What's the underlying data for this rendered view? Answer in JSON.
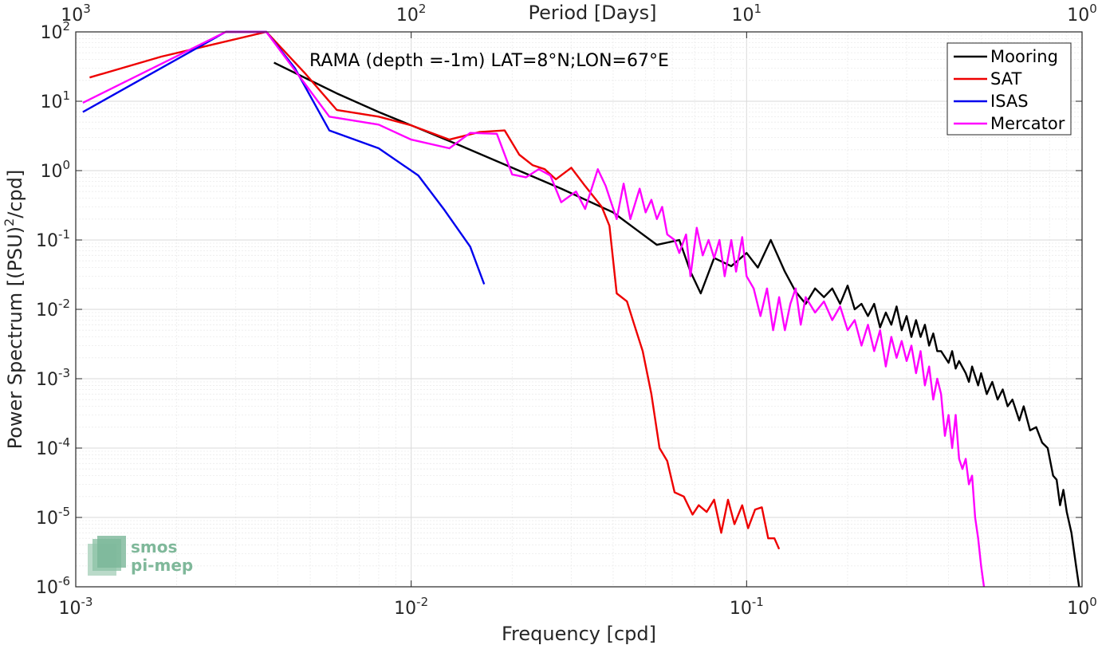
{
  "chart_data": {
    "type": "line",
    "annotation": "RAMA (depth =-1m) LAT=8°N;LON=67°E",
    "xlabel": "Frequency [cpd]",
    "ylabel_main": "Power Spectrum [(PSU)",
    "ylabel_sup": "2",
    "ylabel_tail": "/cpd]",
    "x2label": "Period [Days]",
    "xscale": "log",
    "yscale": "log",
    "xlim": [
      0.001,
      1
    ],
    "ylim": [
      1e-06,
      100
    ],
    "grid": true,
    "legend_position": "top-right",
    "x_ticks": [
      {
        "base": "10",
        "exp": "-3"
      },
      {
        "base": "10",
        "exp": "-2"
      },
      {
        "base": "10",
        "exp": "-1"
      },
      {
        "base": "10",
        "exp": "0"
      }
    ],
    "x2_ticks": [
      {
        "base": "10",
        "exp": "3"
      },
      {
        "base": "10",
        "exp": "2"
      },
      {
        "base": "10",
        "exp": "1"
      },
      {
        "base": "10",
        "exp": "0"
      }
    ],
    "y_ticks": [
      {
        "base": "10",
        "exp": "-6"
      },
      {
        "base": "10",
        "exp": "-5"
      },
      {
        "base": "10",
        "exp": "-4"
      },
      {
        "base": "10",
        "exp": "-3"
      },
      {
        "base": "10",
        "exp": "-2"
      },
      {
        "base": "10",
        "exp": "-1"
      },
      {
        "base": "10",
        "exp": "0"
      },
      {
        "base": "10",
        "exp": "1"
      },
      {
        "base": "10",
        "exp": "2"
      }
    ],
    "series": [
      {
        "name": "Mooring",
        "color": "#000000",
        "points": [
          [
            0.0039,
            36
          ],
          [
            0.0049,
            21
          ],
          [
            0.006,
            13
          ],
          [
            0.008,
            7
          ],
          [
            0.01,
            4.5
          ],
          [
            0.014,
            2.3
          ],
          [
            0.02,
            1.1
          ],
          [
            0.028,
            0.55
          ],
          [
            0.04,
            0.25
          ],
          [
            0.047,
            0.14
          ],
          [
            0.054,
            0.085
          ],
          [
            0.063,
            0.1
          ],
          [
            0.068,
            0.035
          ],
          [
            0.073,
            0.017
          ],
          [
            0.08,
            0.055
          ],
          [
            0.09,
            0.042
          ],
          [
            0.1,
            0.065
          ],
          [
            0.108,
            0.04
          ],
          [
            0.118,
            0.1
          ],
          [
            0.13,
            0.035
          ],
          [
            0.14,
            0.018
          ],
          [
            0.15,
            0.012
          ],
          [
            0.16,
            0.02
          ],
          [
            0.17,
            0.015
          ],
          [
            0.18,
            0.02
          ],
          [
            0.19,
            0.012
          ],
          [
            0.2,
            0.022
          ],
          [
            0.21,
            0.01
          ],
          [
            0.22,
            0.012
          ],
          [
            0.23,
            0.008
          ],
          [
            0.24,
            0.012
          ],
          [
            0.25,
            0.0055
          ],
          [
            0.26,
            0.009
          ],
          [
            0.27,
            0.006
          ],
          [
            0.28,
            0.011
          ],
          [
            0.29,
            0.005
          ],
          [
            0.3,
            0.008
          ],
          [
            0.31,
            0.004
          ],
          [
            0.32,
            0.007
          ],
          [
            0.33,
            0.004
          ],
          [
            0.34,
            0.006
          ],
          [
            0.35,
            0.003
          ],
          [
            0.36,
            0.0045
          ],
          [
            0.37,
            0.0025
          ],
          [
            0.38,
            0.0025
          ],
          [
            0.4,
            0.0017
          ],
          [
            0.41,
            0.0025
          ],
          [
            0.42,
            0.0014
          ],
          [
            0.43,
            0.0018
          ],
          [
            0.45,
            0.0012
          ],
          [
            0.46,
            0.0009
          ],
          [
            0.47,
            0.0015
          ],
          [
            0.49,
            0.0008
          ],
          [
            0.5,
            0.0012
          ],
          [
            0.52,
            0.0006
          ],
          [
            0.54,
            0.0009
          ],
          [
            0.56,
            0.0005
          ],
          [
            0.58,
            0.0007
          ],
          [
            0.6,
            0.0004
          ],
          [
            0.62,
            0.0005
          ],
          [
            0.65,
            0.00025
          ],
          [
            0.67,
            0.0004
          ],
          [
            0.7,
            0.00018
          ],
          [
            0.73,
            0.0002
          ],
          [
            0.76,
            0.00012
          ],
          [
            0.79,
            0.0001
          ],
          [
            0.82,
            4e-05
          ],
          [
            0.84,
            3.5e-05
          ],
          [
            0.86,
            1.5e-05
          ],
          [
            0.88,
            2.5e-05
          ],
          [
            0.9,
            1.2e-05
          ],
          [
            0.93,
            6e-06
          ],
          [
            0.96,
            2e-06
          ],
          [
            0.98,
            1e-06
          ]
        ]
      },
      {
        "name": "SAT",
        "color": "#ee0000",
        "points": [
          [
            0.0011,
            22
          ],
          [
            0.0018,
            44
          ],
          [
            0.0037,
            100
          ],
          [
            0.0048,
            26
          ],
          [
            0.006,
            7.5
          ],
          [
            0.008,
            6
          ],
          [
            0.01,
            4.5
          ],
          [
            0.013,
            2.8
          ],
          [
            0.016,
            3.6
          ],
          [
            0.019,
            3.8
          ],
          [
            0.021,
            1.7
          ],
          [
            0.023,
            1.2
          ],
          [
            0.025,
            1.05
          ],
          [
            0.027,
            0.75
          ],
          [
            0.03,
            1.1
          ],
          [
            0.033,
            0.6
          ],
          [
            0.037,
            0.3
          ],
          [
            0.039,
            0.16
          ],
          [
            0.041,
            0.017
          ],
          [
            0.044,
            0.013
          ],
          [
            0.046,
            0.0065
          ],
          [
            0.049,
            0.0025
          ],
          [
            0.052,
            0.0006
          ],
          [
            0.055,
            0.0001
          ],
          [
            0.058,
            6.5e-05
          ],
          [
            0.061,
            2.3e-05
          ],
          [
            0.065,
            2e-05
          ],
          [
            0.069,
            1.1e-05
          ],
          [
            0.072,
            1.5e-05
          ],
          [
            0.076,
            1.2e-05
          ],
          [
            0.08,
            1.8e-05
          ],
          [
            0.084,
            6e-06
          ],
          [
            0.088,
            1.8e-05
          ],
          [
            0.092,
            8e-06
          ],
          [
            0.097,
            1.5e-05
          ],
          [
            0.101,
            7e-06
          ],
          [
            0.106,
            1.3e-05
          ],
          [
            0.111,
            1.4e-05
          ],
          [
            0.116,
            5e-06
          ],
          [
            0.121,
            5e-06
          ],
          [
            0.125,
            3.5e-06
          ]
        ]
      },
      {
        "name": "ISAS",
        "color": "#0000ee",
        "points": [
          [
            0.00105,
            7
          ],
          [
            0.0028,
            100
          ],
          [
            0.0037,
            100
          ],
          [
            0.0045,
            30
          ],
          [
            0.0057,
            3.8
          ],
          [
            0.008,
            2.1
          ],
          [
            0.0105,
            0.85
          ],
          [
            0.0125,
            0.28
          ],
          [
            0.015,
            0.08
          ],
          [
            0.0165,
            0.023
          ]
        ]
      },
      {
        "name": "Mercator",
        "color": "#ff00ff",
        "points": [
          [
            0.00105,
            9.5
          ],
          [
            0.0028,
            100
          ],
          [
            0.0037,
            100
          ],
          [
            0.0045,
            28
          ],
          [
            0.0057,
            6
          ],
          [
            0.008,
            4.6
          ],
          [
            0.01,
            2.8
          ],
          [
            0.013,
            2.1
          ],
          [
            0.015,
            3.5
          ],
          [
            0.018,
            3.4
          ],
          [
            0.02,
            0.88
          ],
          [
            0.022,
            0.8
          ],
          [
            0.024,
            1.05
          ],
          [
            0.026,
            0.85
          ],
          [
            0.028,
            0.35
          ],
          [
            0.031,
            0.5
          ],
          [
            0.033,
            0.28
          ],
          [
            0.036,
            1.05
          ],
          [
            0.038,
            0.6
          ],
          [
            0.041,
            0.2
          ],
          [
            0.043,
            0.65
          ],
          [
            0.045,
            0.2
          ],
          [
            0.048,
            0.55
          ],
          [
            0.05,
            0.25
          ],
          [
            0.052,
            0.38
          ],
          [
            0.054,
            0.2
          ],
          [
            0.056,
            0.3
          ],
          [
            0.058,
            0.12
          ],
          [
            0.061,
            0.1
          ],
          [
            0.063,
            0.065
          ],
          [
            0.066,
            0.12
          ],
          [
            0.068,
            0.03
          ],
          [
            0.071,
            0.15
          ],
          [
            0.074,
            0.06
          ],
          [
            0.077,
            0.1
          ],
          [
            0.08,
            0.055
          ],
          [
            0.083,
            0.1
          ],
          [
            0.086,
            0.03
          ],
          [
            0.09,
            0.1
          ],
          [
            0.093,
            0.035
          ],
          [
            0.097,
            0.11
          ],
          [
            0.1,
            0.03
          ],
          [
            0.105,
            0.02
          ],
          [
            0.11,
            0.008
          ],
          [
            0.115,
            0.02
          ],
          [
            0.12,
            0.005
          ],
          [
            0.125,
            0.015
          ],
          [
            0.13,
            0.005
          ],
          [
            0.135,
            0.012
          ],
          [
            0.14,
            0.02
          ],
          [
            0.145,
            0.006
          ],
          [
            0.15,
            0.015
          ],
          [
            0.16,
            0.009
          ],
          [
            0.17,
            0.013
          ],
          [
            0.18,
            0.007
          ],
          [
            0.19,
            0.011
          ],
          [
            0.2,
            0.005
          ],
          [
            0.21,
            0.007
          ],
          [
            0.22,
            0.003
          ],
          [
            0.23,
            0.006
          ],
          [
            0.24,
            0.0025
          ],
          [
            0.25,
            0.005
          ],
          [
            0.26,
            0.0015
          ],
          [
            0.27,
            0.004
          ],
          [
            0.28,
            0.002
          ],
          [
            0.29,
            0.0035
          ],
          [
            0.3,
            0.0018
          ],
          [
            0.31,
            0.003
          ],
          [
            0.32,
            0.0012
          ],
          [
            0.33,
            0.0025
          ],
          [
            0.34,
            0.0008
          ],
          [
            0.35,
            0.0015
          ],
          [
            0.36,
            0.0005
          ],
          [
            0.37,
            0.001
          ],
          [
            0.38,
            0.0006
          ],
          [
            0.39,
            0.00015
          ],
          [
            0.4,
            0.0003
          ],
          [
            0.41,
            0.0001
          ],
          [
            0.42,
            0.0003
          ],
          [
            0.43,
            7e-05
          ],
          [
            0.44,
            5e-05
          ],
          [
            0.45,
            7e-05
          ],
          [
            0.46,
            3e-05
          ],
          [
            0.47,
            4e-05
          ],
          [
            0.48,
            1e-05
          ],
          [
            0.49,
            5e-06
          ],
          [
            0.5,
            2e-06
          ],
          [
            0.51,
            1e-06
          ]
        ]
      }
    ]
  },
  "logo": {
    "line1": "smos",
    "line2": "pi-mep"
  },
  "colors": {
    "axis": "#262626",
    "grid_major": "#d9d9d9",
    "grid_minor": "#ececec",
    "logo": "#7fb89a"
  }
}
